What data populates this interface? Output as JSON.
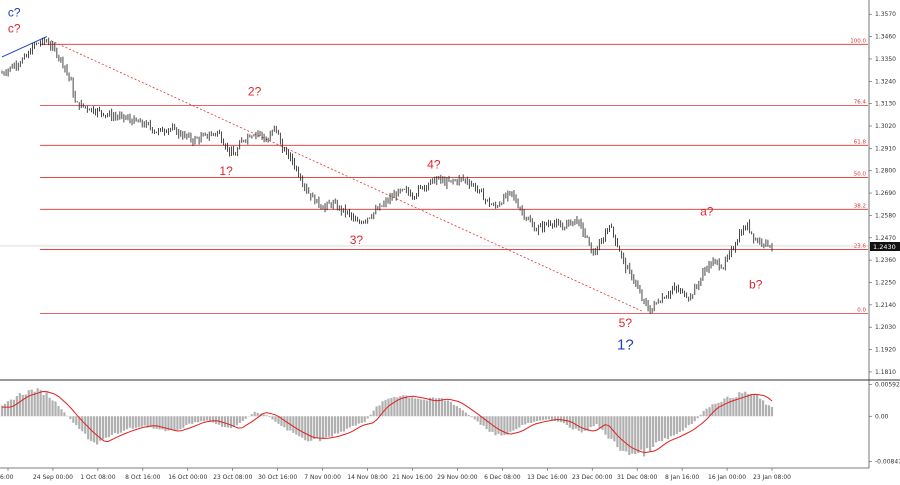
{
  "chart_data": {
    "type": "candlestick-with-oscillator",
    "price_axis": {
      "ticks": [
        "1.3570",
        "1.3460",
        "1.3350",
        "1.3240",
        "1.3130",
        "1.3020",
        "1.2910",
        "1.2800",
        "1.2690",
        "1.2580",
        "1.2470",
        "1.2360",
        "1.2250",
        "1.2140",
        "1.2030",
        "1.1920",
        "1.1810"
      ],
      "current_price": "1.2430",
      "ylim": [
        1.178,
        1.364
      ]
    },
    "oscillator_axis": {
      "ticks": [
        "0.00592",
        "0.00",
        "-0.00847"
      ],
      "ylim": [
        -0.0095,
        0.0066
      ]
    },
    "time_axis": {
      "labels": [
        "6:00",
        "24 Sep 00:00",
        "1 Oct 08:00",
        "8 Oct 16:00",
        "16 Oct 00:00",
        "23 Oct 08:00",
        "30 Oct 16:00",
        "7 Nov 00:00",
        "14 Nov 08:00",
        "21 Nov 16:00",
        "29 Nov 00:00",
        "6 Dec 08:00",
        "13 Dec 16:00",
        "23 Dec 00:00",
        "31 Dec 08:00",
        "8 Jan 16:00",
        "16 Jan 00:00",
        "23 Jan 08:00"
      ]
    },
    "fib_levels": [
      {
        "label": "100.0",
        "price": 1.3422
      },
      {
        "label": "76.4",
        "price": 1.3121
      },
      {
        "label": "61.8",
        "price": 1.2925
      },
      {
        "label": "50.0",
        "price": 1.2767
      },
      {
        "label": "38.2",
        "price": 1.261
      },
      {
        "label": "23.6",
        "price": 1.2412
      },
      {
        "label": "0.0",
        "price": 1.2098
      }
    ],
    "waves": [
      {
        "label": "c?",
        "color": "blue",
        "t": 3.0,
        "price": 1.3558
      },
      {
        "label": "c?",
        "color": "red",
        "t": 3.0,
        "price": 1.348
      },
      {
        "label": "1?",
        "color": "red",
        "t": 55.0,
        "price": 1.278
      },
      {
        "label": "2?",
        "color": "red",
        "t": 62.0,
        "price": 1.317
      },
      {
        "label": "3?",
        "color": "red",
        "t": 87.0,
        "price": 1.244
      },
      {
        "label": "4?",
        "color": "red",
        "t": 106.0,
        "price": 1.281
      },
      {
        "label": "5?",
        "color": "red",
        "t": 153.0,
        "price": 1.203
      },
      {
        "label": "1?",
        "color": "blue",
        "t": 153.0,
        "price": 1.192
      },
      {
        "label": "a?",
        "color": "red",
        "t": 173.0,
        "price": 1.258
      },
      {
        "label": "b?",
        "color": "red",
        "t": 185.0,
        "price": 1.222
      }
    ],
    "price_series": [
      [
        0,
        1.328
      ],
      [
        3,
        1.332
      ],
      [
        6,
        1.336
      ],
      [
        8,
        1.342
      ],
      [
        11,
        1.344
      ],
      [
        13,
        1.339
      ],
      [
        15,
        1.333
      ],
      [
        17,
        1.323
      ],
      [
        18,
        1.313
      ],
      [
        21,
        1.311
      ],
      [
        24,
        1.309
      ],
      [
        27,
        1.307
      ],
      [
        30,
        1.306
      ],
      [
        33,
        1.304
      ],
      [
        36,
        1.302
      ],
      [
        38,
        1.299
      ],
      [
        41,
        1.301
      ],
      [
        44,
        1.298
      ],
      [
        47,
        1.295
      ],
      [
        50,
        1.297
      ],
      [
        53,
        1.299
      ],
      [
        55,
        1.292
      ],
      [
        57,
        1.287
      ],
      [
        59,
        1.295
      ],
      [
        61,
        1.298
      ],
      [
        63,
        1.299
      ],
      [
        65,
        1.294
      ],
      [
        67,
        1.302
      ],
      [
        69,
        1.29
      ],
      [
        71,
        1.286
      ],
      [
        73,
        1.278
      ],
      [
        75,
        1.27
      ],
      [
        77,
        1.265
      ],
      [
        79,
        1.262
      ],
      [
        81,
        1.264
      ],
      [
        83,
        1.261
      ],
      [
        85,
        1.259
      ],
      [
        87,
        1.254
      ],
      [
        89,
        1.256
      ],
      [
        91,
        1.259
      ],
      [
        93,
        1.262
      ],
      [
        95,
        1.266
      ],
      [
        97,
        1.269
      ],
      [
        99,
        1.27
      ],
      [
        101,
        1.268
      ],
      [
        103,
        1.272
      ],
      [
        105,
        1.274
      ],
      [
        107,
        1.276
      ],
      [
        109,
        1.274
      ],
      [
        111,
        1.275
      ],
      [
        113,
        1.276
      ],
      [
        115,
        1.274
      ],
      [
        117,
        1.27
      ],
      [
        119,
        1.265
      ],
      [
        121,
        1.262
      ],
      [
        123,
        1.266
      ],
      [
        125,
        1.269
      ],
      [
        127,
        1.262
      ],
      [
        129,
        1.256
      ],
      [
        131,
        1.251
      ],
      [
        133,
        1.253
      ],
      [
        135,
        1.255
      ],
      [
        137,
        1.252
      ],
      [
        139,
        1.254
      ],
      [
        141,
        1.256
      ],
      [
        143,
        1.249
      ],
      [
        145,
        1.239
      ],
      [
        147,
        1.244
      ],
      [
        149,
        1.254
      ],
      [
        151,
        1.244
      ],
      [
        153,
        1.233
      ],
      [
        155,
        1.227
      ],
      [
        157,
        1.217
      ],
      [
        159,
        1.211
      ],
      [
        161,
        1.216
      ],
      [
        163,
        1.219
      ],
      [
        165,
        1.222
      ],
      [
        167,
        1.22
      ],
      [
        169,
        1.218
      ],
      [
        171,
        1.225
      ],
      [
        173,
        1.233
      ],
      [
        175,
        1.235
      ],
      [
        177,
        1.233
      ],
      [
        179,
        1.24
      ],
      [
        181,
        1.249
      ],
      [
        183,
        1.253
      ],
      [
        185,
        1.246
      ],
      [
        187,
        1.245
      ],
      [
        189,
        1.243
      ]
    ],
    "oscillator_series": [
      [
        0,
        0.0018
      ],
      [
        4,
        0.004
      ],
      [
        8,
        0.005
      ],
      [
        11,
        0.0042
      ],
      [
        14,
        0.002
      ],
      [
        17,
        -0.0008
      ],
      [
        20,
        -0.0032
      ],
      [
        23,
        -0.0052
      ],
      [
        26,
        -0.004
      ],
      [
        29,
        -0.003
      ],
      [
        32,
        -0.0022
      ],
      [
        35,
        -0.0018
      ],
      [
        38,
        -0.0024
      ],
      [
        41,
        -0.003
      ],
      [
        44,
        -0.0022
      ],
      [
        47,
        -0.0012
      ],
      [
        50,
        -0.0008
      ],
      [
        53,
        -0.0015
      ],
      [
        56,
        -0.0025
      ],
      [
        59,
        -0.001
      ],
      [
        62,
        0.0008
      ],
      [
        65,
        0.0002
      ],
      [
        68,
        -0.0015
      ],
      [
        71,
        -0.003
      ],
      [
        74,
        -0.0042
      ],
      [
        77,
        -0.0044
      ],
      [
        80,
        -0.004
      ],
      [
        83,
        -0.0032
      ],
      [
        86,
        -0.0018
      ],
      [
        89,
        -0.0012
      ],
      [
        92,
        0.0018
      ],
      [
        95,
        0.0034
      ],
      [
        98,
        0.004
      ],
      [
        101,
        0.0036
      ],
      [
        104,
        0.003
      ],
      [
        107,
        0.0034
      ],
      [
        110,
        0.0028
      ],
      [
        113,
        0.0012
      ],
      [
        116,
        -0.0006
      ],
      [
        119,
        -0.0024
      ],
      [
        122,
        -0.0036
      ],
      [
        125,
        -0.003
      ],
      [
        128,
        -0.0016
      ],
      [
        131,
        -0.001
      ],
      [
        134,
        -0.0006
      ],
      [
        137,
        -0.001
      ],
      [
        140,
        -0.0024
      ],
      [
        143,
        -0.003
      ],
      [
        146,
        -0.0014
      ],
      [
        149,
        -0.0042
      ],
      [
        152,
        -0.0062
      ],
      [
        155,
        -0.0072
      ],
      [
        158,
        -0.0068
      ],
      [
        161,
        -0.005
      ],
      [
        164,
        -0.004
      ],
      [
        167,
        -0.0028
      ],
      [
        170,
        -0.001
      ],
      [
        173,
        0.0016
      ],
      [
        176,
        0.0028
      ],
      [
        179,
        0.0036
      ],
      [
        182,
        0.0044
      ],
      [
        185,
        0.004
      ],
      [
        188,
        0.002
      ],
      [
        189,
        0.0016
      ]
    ],
    "colors": {
      "fib_line": "#e03030",
      "trend_line": "#e03030",
      "candles": "#1a1a1a",
      "histogram": "#b0b0b0",
      "signal_line": "#e02020",
      "current_price_tag": "#111111",
      "blue_segment": "#1f3fbf"
    }
  }
}
